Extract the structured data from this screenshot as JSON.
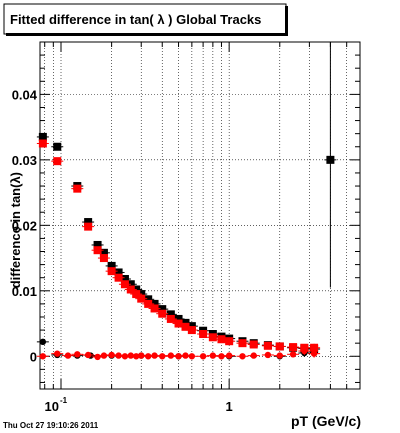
{
  "chart_data": {
    "type": "scatter",
    "title": "Fitted difference in tan( λ )  Global Tracks",
    "xlabel": "pT (GeV/c)",
    "ylabel": "difference in tan(λ)",
    "x_scale": "log",
    "xlim": [
      0.075,
      6.0
    ],
    "ylim": [
      -0.005,
      0.048
    ],
    "x_ticks": [
      {
        "value": 0.1,
        "base": "10",
        "exp": "-1"
      },
      {
        "value": 1,
        "label": "1"
      }
    ],
    "y_ticks": [
      {
        "value": 0,
        "label": "0"
      },
      {
        "value": 0.01,
        "label": "0.01"
      },
      {
        "value": 0.02,
        "label": "0.02"
      },
      {
        "value": 0.03,
        "label": "0.03"
      },
      {
        "value": 0.04,
        "label": "0.04"
      }
    ],
    "grid": true,
    "series": [
      {
        "color": "#000000",
        "marker": "square",
        "x": [
          0.078,
          0.095,
          0.125,
          0.145,
          0.165,
          0.18,
          0.2,
          0.22,
          0.24,
          0.26,
          0.28,
          0.3,
          0.33,
          0.36,
          0.4,
          0.45,
          0.5,
          0.55,
          0.6,
          0.7,
          0.8,
          0.9,
          1.0,
          1.2,
          1.4,
          1.7,
          2.0,
          2.4,
          2.8,
          3.2,
          4.0
        ],
        "y": [
          0.0335,
          0.032,
          0.026,
          0.0205,
          0.017,
          0.0158,
          0.0138,
          0.0128,
          0.0118,
          0.011,
          0.0102,
          0.0095,
          0.0087,
          0.008,
          0.0072,
          0.0064,
          0.0057,
          0.0051,
          0.0046,
          0.0039,
          0.0034,
          0.003,
          0.0027,
          0.0023,
          0.002,
          0.0017,
          0.0015,
          0.0013,
          0.0012,
          0.0011,
          0.03
        ],
        "yerr": [
          0.0005,
          0.0004,
          0.0003,
          0.0003,
          0.0002,
          0.0002,
          0.0002,
          0.0002,
          0.0002,
          0.0002,
          0.0002,
          0.0002,
          0.0002,
          0.0002,
          0.0002,
          0.0002,
          0.0002,
          0.0002,
          0.0002,
          0.0002,
          0.0002,
          0.0002,
          0.0002,
          0.0002,
          0.0002,
          0.0003,
          0.0003,
          0.0004,
          0.0005,
          0.0006,
          0.0195
        ]
      },
      {
        "color": "#ff0000",
        "marker": "square",
        "x": [
          0.078,
          0.095,
          0.125,
          0.145,
          0.165,
          0.18,
          0.2,
          0.22,
          0.24,
          0.26,
          0.28,
          0.3,
          0.33,
          0.36,
          0.4,
          0.45,
          0.5,
          0.55,
          0.6,
          0.7,
          0.8,
          0.9,
          1.0,
          1.2,
          1.4,
          1.7,
          2.0,
          2.4,
          2.8,
          3.2
        ],
        "y": [
          0.0325,
          0.0298,
          0.0256,
          0.0198,
          0.0162,
          0.015,
          0.013,
          0.012,
          0.011,
          0.0102,
          0.0095,
          0.0088,
          0.008,
          0.0073,
          0.0065,
          0.0057,
          0.005,
          0.0045,
          0.004,
          0.0034,
          0.0029,
          0.0026,
          0.0023,
          0.002,
          0.0018,
          0.0016,
          0.0015,
          0.0014,
          0.0013,
          0.0013
        ],
        "yerr": [
          0.0005,
          0.0004,
          0.0003,
          0.0003,
          0.0002,
          0.0002,
          0.0002,
          0.0002,
          0.0002,
          0.0002,
          0.0002,
          0.0002,
          0.0002,
          0.0002,
          0.0002,
          0.0002,
          0.0002,
          0.0002,
          0.0002,
          0.0002,
          0.0002,
          0.0002,
          0.0002,
          0.0002,
          0.0002,
          0.0003,
          0.0003,
          0.0004,
          0.0005,
          0.0006
        ]
      },
      {
        "color": "#000000",
        "marker": "circle",
        "x": [
          0.078,
          0.095,
          0.125,
          0.15,
          0.2,
          0.3,
          0.5,
          1.0,
          2.0,
          2.8
        ],
        "y": [
          0.0022,
          0.0002,
          0.0001,
          0.0001,
          0.0001,
          0.0001,
          0.0,
          0.0,
          0.0,
          0.0005
        ],
        "yerr": [
          0.0004,
          0.0003,
          0.0002,
          0.0002,
          0.0002,
          0.0002,
          0.0002,
          0.0002,
          0.0003,
          0.0006
        ]
      },
      {
        "color": "#ff0000",
        "marker": "circle",
        "x": [
          0.078,
          0.095,
          0.11,
          0.125,
          0.145,
          0.165,
          0.18,
          0.2,
          0.22,
          0.24,
          0.26,
          0.28,
          0.3,
          0.33,
          0.36,
          0.4,
          0.45,
          0.5,
          0.55,
          0.6,
          0.7,
          0.8,
          0.9,
          1.0,
          1.2,
          1.4,
          1.7,
          2.0,
          2.4,
          2.8,
          3.2
        ],
        "y": [
          0.0,
          0.0004,
          0.0001,
          0.0003,
          0.0002,
          -0.0001,
          0.0001,
          0.0002,
          0.0001,
          0.0,
          0.0001,
          0.0,
          0.0001,
          0.0,
          0.0001,
          0.0,
          0.0001,
          0.0,
          0.0001,
          0.0,
          0.0,
          0.0001,
          0.0,
          0.0001,
          0.0,
          0.0001,
          0.0002,
          0.0001,
          0.0003,
          0.0008,
          0.0004
        ],
        "yerr": [
          0.0004,
          0.0003,
          0.0003,
          0.0002,
          0.0002,
          0.0002,
          0.0002,
          0.0002,
          0.0002,
          0.0002,
          0.0002,
          0.0002,
          0.0002,
          0.0002,
          0.0002,
          0.0002,
          0.0002,
          0.0002,
          0.0002,
          0.0002,
          0.0002,
          0.0002,
          0.0002,
          0.0002,
          0.0002,
          0.0002,
          0.0003,
          0.0003,
          0.0004,
          0.0006,
          0.0006
        ]
      }
    ]
  },
  "footer": {
    "timestamp": "Thu Oct 27 19:10:26 2011"
  }
}
